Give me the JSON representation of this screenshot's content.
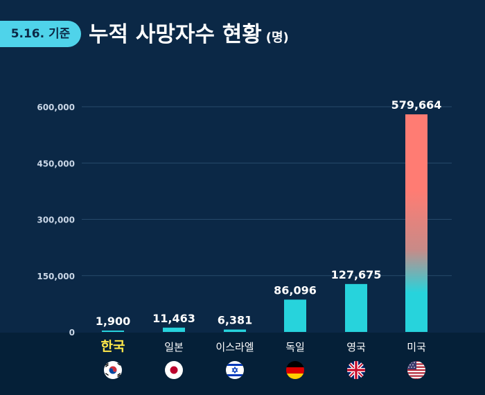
{
  "header": {
    "date_badge": "5.16. 기준",
    "title": "누적 사망자수 현황",
    "unit": "(명)"
  },
  "colors": {
    "background": "#0b2846",
    "bottom_band": "#052038",
    "bar": "#27d3dc",
    "bar_top_gradient": "#ff7c73",
    "highlight_label": "#ffe84a",
    "axis_text": "#c9d6e6",
    "grid": "#274a6b"
  },
  "chart_data": {
    "type": "bar",
    "title": "누적 사망자수 현황",
    "unit": "(명)",
    "categories": [
      "한국",
      "일본",
      "이스라엘",
      "독일",
      "영국",
      "미국"
    ],
    "values": [
      1900,
      11463,
      6381,
      86096,
      127675,
      579664
    ],
    "value_labels": [
      "1,900",
      "11,463",
      "6,381",
      "86,096",
      "127,675",
      "579,664"
    ],
    "highlight_category": "한국",
    "ylim": [
      0,
      600000
    ],
    "yticks": [
      0,
      150000,
      300000,
      450000,
      600000
    ],
    "ytick_labels": [
      "0",
      "150,000",
      "300,000",
      "450,000",
      "600,000"
    ],
    "grid": true,
    "legend": "none",
    "flag_icons": [
      "korea-flag-icon",
      "japan-flag-icon",
      "israel-flag-icon",
      "germany-flag-icon",
      "uk-flag-icon",
      "usa-flag-icon"
    ]
  }
}
